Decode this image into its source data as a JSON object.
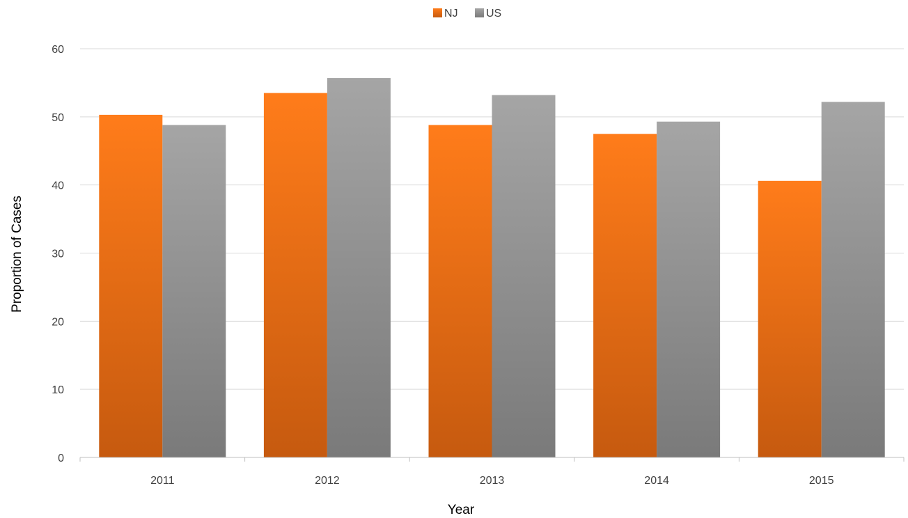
{
  "chart_data": {
    "type": "bar",
    "categories": [
      "2011",
      "2012",
      "2013",
      "2014",
      "2015"
    ],
    "series": [
      {
        "name": "NJ",
        "values": [
          50.3,
          53.5,
          48.8,
          47.5,
          40.6
        ],
        "color": "#f47a1f"
      },
      {
        "name": "US",
        "values": [
          48.8,
          55.7,
          53.2,
          49.3,
          52.2
        ],
        "color": "#9a9a9a"
      }
    ],
    "xlabel": "Year",
    "ylabel": "Proportion of Cases",
    "ylim": [
      0,
      60
    ],
    "yticks": [
      0,
      10,
      20,
      30,
      40,
      50,
      60
    ],
    "grid": true,
    "legend_position": "top-center"
  }
}
